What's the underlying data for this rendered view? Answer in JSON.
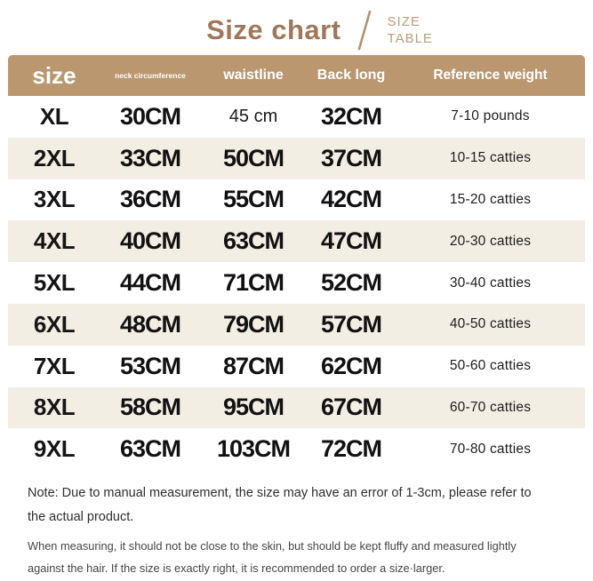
{
  "page": {
    "title": "Size chart",
    "subtitle_line1": "SIZE",
    "subtitle_line2": "TABLE"
  },
  "chart_data": {
    "type": "table",
    "title": "Size chart",
    "columns": [
      "size",
      "neck circumference",
      "waistline",
      "Back long",
      "Reference weight"
    ],
    "rows": [
      [
        "XL",
        "30CM",
        "45 cm",
        "32CM",
        "7-10 pounds"
      ],
      [
        "2XL",
        "33CM",
        "50CM",
        "37CM",
        "10-15 catties"
      ],
      [
        "3XL",
        "36CM",
        "55CM",
        "42CM",
        "15-20 catties"
      ],
      [
        "4XL",
        "40CM",
        "63CM",
        "47CM",
        "20-30 catties"
      ],
      [
        "5XL",
        "44CM",
        "71CM",
        "52CM",
        "30-40 catties"
      ],
      [
        "6XL",
        "48CM",
        "79CM",
        "57CM",
        "40-50 catties"
      ],
      [
        "7XL",
        "53CM",
        "87CM",
        "62CM",
        "50-60 catties"
      ],
      [
        "8XL",
        "58CM",
        "95CM",
        "67CM",
        "60-70 catties"
      ],
      [
        "9XL",
        "63CM",
        "103CM",
        "72CM",
        "70-80 catties"
      ]
    ],
    "layout": {
      "striped_rows": true,
      "header_position": "top"
    }
  },
  "notes": {
    "note1": "Note: Due to manual measurement, the size may have an error of 1-3cm, please refer to the actual product.",
    "note2": "When measuring, it should not be close to the skin, but should be kept fluffy and measured lightly against the hair. If the size is exactly right, it is recommended to order a size·larger."
  },
  "colors": {
    "header_bg": "#bb9770",
    "row_alt_bg": "#f3eee4",
    "title_brown": "#a0775a",
    "subtitle_tan": "#bd9c79",
    "text_dark": "#111111"
  }
}
